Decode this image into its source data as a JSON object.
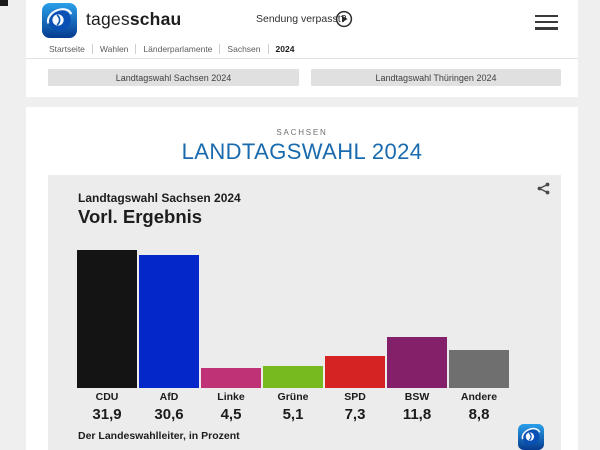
{
  "header": {
    "brand": {
      "regular": "tages",
      "bold": "schau"
    },
    "missed_label": "Sendung verpasst?",
    "breadcrumb": [
      "Startseite",
      "Wahlen",
      "Länderparlamente",
      "Sachsen",
      "2024"
    ],
    "nav_buttons": [
      "Landtagswahl Sachsen 2024",
      "Landtagswahl Thüringen 2024"
    ]
  },
  "main": {
    "kicker": "SACHSEN",
    "title": "LANDTAGSWAHL 2024"
  },
  "chart_card": {
    "subtitle": "Landtagswahl Sachsen 2024",
    "title": "Vorl. Ergebnis",
    "source": "Der Landeswahlleiter, in Prozent"
  },
  "icons": {
    "logo": "tagesschau-globe-icon",
    "play": "play-circle-icon",
    "menu": "hamburger-menu-icon",
    "share": "share-icon"
  },
  "colors": {
    "accent_blue": "#1a6aae",
    "page_background": "#efefef",
    "card_background": "#ececec",
    "button_background": "#e0e0e0"
  },
  "chart_data": {
    "type": "bar",
    "title": "Vorl. Ergebnis",
    "subtitle": "Landtagswahl Sachsen 2024",
    "categories": [
      "CDU",
      "AfD",
      "Linke",
      "Grüne",
      "SPD",
      "BSW",
      "Andere"
    ],
    "values": [
      31.9,
      30.6,
      4.5,
      5.1,
      7.3,
      11.8,
      8.8
    ],
    "value_labels": [
      "31,9",
      "30,6",
      "4,5",
      "5,1",
      "7,3",
      "11,8",
      "8,8"
    ],
    "colors": [
      "#141414",
      "#0327c8",
      "#bf3376",
      "#77ba1f",
      "#d52222",
      "#842069",
      "#6f6f6f"
    ],
    "unit": "Prozent",
    "source": "Der Landeswahlleiter",
    "ylim": [
      0,
      35
    ],
    "grid": false,
    "legend": "none"
  }
}
